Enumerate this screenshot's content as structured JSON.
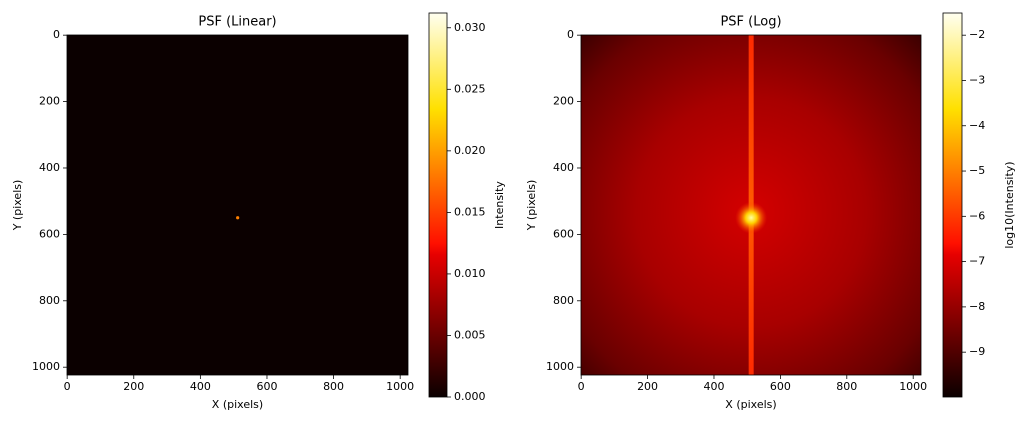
{
  "chart_data": [
    {
      "type": "image",
      "title": "PSF (Linear)",
      "x_label": "X (pixels)",
      "y_label": "Y (pixels)",
      "colorbar_label": "Intensity",
      "colormap": "hot",
      "scale": "linear",
      "xlim": [
        -0.5,
        1023.5
      ],
      "ylim": [
        1023.5,
        -0.5
      ],
      "xticks": [
        0,
        200,
        400,
        600,
        800,
        1000
      ],
      "yticks": [
        0,
        200,
        400,
        600,
        800,
        1000
      ],
      "clim": [
        0,
        0.0312
      ],
      "cticks": [
        {
          "value": 0,
          "label": "0.000"
        },
        {
          "value": 0.005,
          "label": "0.005"
        },
        {
          "value": 0.01,
          "label": "0.010"
        },
        {
          "value": 0.015,
          "label": "0.015"
        },
        {
          "value": 0.02,
          "label": "0.020"
        },
        {
          "value": 0.025,
          "label": "0.025"
        },
        {
          "value": 0.03,
          "label": "0.030"
        }
      ],
      "peak": [
        512,
        550
      ]
    },
    {
      "type": "image",
      "title": "PSF (Log)",
      "x_label": "X (pixels)",
      "y_label": "Y (pixels)",
      "colorbar_label": "log10(Intensity)",
      "colormap": "hot",
      "scale": "log",
      "xlim": [
        -0.5,
        1023.5
      ],
      "ylim": [
        1023.5,
        -0.5
      ],
      "xticks": [
        0,
        200,
        400,
        600,
        800,
        1000
      ],
      "yticks": [
        0,
        200,
        400,
        600,
        800,
        1000
      ],
      "clim": [
        -9.99,
        -1.51
      ],
      "cticks": [
        {
          "value": -9,
          "label": "−9"
        },
        {
          "value": -8,
          "label": "−8"
        },
        {
          "value": -7,
          "label": "−7"
        },
        {
          "value": -6,
          "label": "−6"
        },
        {
          "value": -5,
          "label": "−5"
        },
        {
          "value": -4,
          "label": "−4"
        },
        {
          "value": -3,
          "label": "−3"
        },
        {
          "value": -2,
          "label": "−2"
        }
      ],
      "peak": [
        512,
        550
      ]
    }
  ]
}
